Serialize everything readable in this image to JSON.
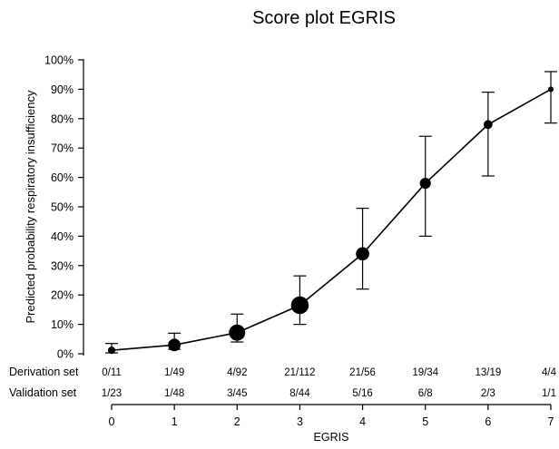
{
  "chart_data": {
    "type": "line",
    "title": "Score plot EGRIS",
    "xlabel": "EGRIS",
    "ylabel": "Predicted probability respiratory insufficiency",
    "xlim": [
      0,
      7
    ],
    "ylim": [
      0,
      100
    ],
    "x_ticks": [
      "0",
      "1",
      "2",
      "3",
      "4",
      "5",
      "6",
      "7"
    ],
    "y_ticks": [
      "0%",
      "10%",
      "20%",
      "30%",
      "40%",
      "50%",
      "60%",
      "70%",
      "80%",
      "90%",
      "100%"
    ],
    "y_tick_values": [
      0,
      10,
      20,
      30,
      40,
      50,
      60,
      70,
      80,
      90,
      100
    ],
    "x": [
      0,
      1,
      2,
      3,
      4,
      5,
      6,
      7
    ],
    "values": [
      1.2,
      3.0,
      7.2,
      16.5,
      34.0,
      58.0,
      78.0,
      90.0
    ],
    "ci_lower": [
      0.3,
      1.5,
      4.0,
      10.0,
      22.0,
      40.0,
      60.5,
      78.5
    ],
    "ci_upper": [
      3.5,
      7.0,
      13.5,
      26.5,
      49.5,
      74.0,
      89.0,
      96.0
    ],
    "marker_weight": [
      11,
      49,
      92,
      112,
      56,
      34,
      19,
      4
    ],
    "grid": false,
    "legend": "none",
    "rows": [
      {
        "label": "Derivation set",
        "values": [
          "0/11",
          "1/49",
          "4/92",
          "21/112",
          "21/56",
          "19/34",
          "13/19",
          "4/4"
        ]
      },
      {
        "label": "Validation set",
        "values": [
          "1/23",
          "1/48",
          "3/45",
          "8/44",
          "5/16",
          "6/8",
          "2/3",
          "1/1"
        ]
      }
    ]
  }
}
